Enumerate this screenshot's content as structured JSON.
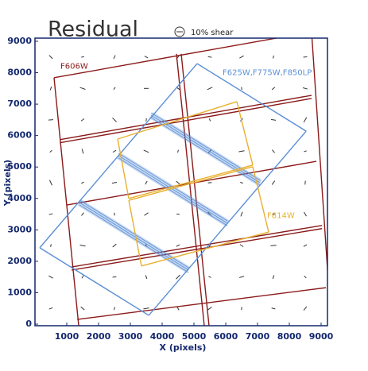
{
  "chart_data": {
    "type": "whisker-map",
    "title": "Residual",
    "legend_label": "10% shear",
    "x_label": "X (pixels)",
    "y_label": "Y (pixels)",
    "xlim": [
      0,
      9200
    ],
    "ylim": [
      -50,
      9100
    ],
    "xticks": [
      1000,
      2000,
      3000,
      4000,
      5000,
      6000,
      7000,
      8000,
      9000
    ],
    "yticks": [
      0,
      1000,
      2000,
      3000,
      4000,
      5000,
      6000,
      7000,
      8000,
      9000
    ],
    "key_shear": 10,
    "whisker_color": "#333333",
    "whiskers": {
      "x": [
        500,
        1500,
        2500,
        3500,
        4500,
        5500,
        6500,
        7500,
        8500
      ],
      "y": [
        500,
        1500,
        2500,
        3500,
        4500,
        5500,
        6500,
        7500,
        8500
      ],
      "angle": [
        [
          20,
          -40,
          75,
          10,
          -60,
          35,
          85,
          -15,
          50
        ],
        [
          -30,
          60,
          5,
          -70,
          45,
          -20,
          15,
          70,
          -45
        ],
        [
          80,
          -10,
          40,
          -55,
          25,
          65,
          -35,
          5,
          30
        ],
        [
          15,
          50,
          -80,
          35,
          -5,
          -45,
          70,
          25,
          -60
        ],
        [
          -65,
          25,
          10,
          60,
          -40,
          5,
          -20,
          55,
          85
        ],
        [
          40,
          -75,
          30,
          -25,
          75,
          50,
          10,
          -50,
          20
        ],
        [
          5,
          35,
          -45,
          80,
          15,
          -65,
          45,
          -10,
          60
        ],
        [
          70,
          -20,
          55,
          0,
          -35,
          25,
          -80,
          40,
          -15
        ],
        [
          -45,
          10,
          65,
          -30,
          50,
          -10,
          30,
          75,
          5
        ]
      ],
      "shear": [
        [
          4,
          5,
          3,
          6,
          4,
          5,
          3,
          4,
          5
        ],
        [
          5,
          3,
          4,
          4,
          6,
          3,
          5,
          4,
          3
        ],
        [
          3,
          6,
          5,
          3,
          4,
          5,
          4,
          6,
          4
        ],
        [
          4,
          4,
          3,
          5,
          3,
          6,
          5,
          3,
          5
        ],
        [
          6,
          3,
          5,
          4,
          5,
          4,
          3,
          5,
          4
        ],
        [
          3,
          5,
          4,
          6,
          3,
          5,
          6,
          4,
          3
        ],
        [
          5,
          4,
          6,
          3,
          5,
          3,
          4,
          5,
          6
        ],
        [
          4,
          6,
          3,
          5,
          4,
          6,
          3,
          4,
          5
        ],
        [
          5,
          3,
          4,
          4,
          6,
          4,
          5,
          3,
          4
        ]
      ]
    },
    "footprints": [
      {
        "name": "F606W",
        "color": "#8b1a1a",
        "label_at": [
          800,
          8200
        ],
        "segments": [
          [
            600,
            7840,
            8700,
            9300
          ],
          [
            780,
            5870,
            8700,
            7280
          ],
          [
            780,
            5770,
            8700,
            7180
          ],
          [
            1000,
            3790,
            8850,
            5180
          ],
          [
            1150,
            1820,
            9030,
            3140
          ],
          [
            1150,
            1720,
            9030,
            3040
          ],
          [
            1330,
            150,
            9150,
            1160
          ],
          [
            600,
            7840,
            1400,
            -300
          ],
          [
            8700,
            9300,
            9250,
            1000
          ],
          [
            4450,
            8600,
            5350,
            -300
          ],
          [
            4600,
            8600,
            5500,
            -300
          ]
        ],
        "bands": []
      },
      {
        "name": "F625W,F775W,F850LP",
        "color": "#5b8fd6",
        "label_at": [
          5900,
          8000
        ],
        "segments": [
          [
            5100,
            8290,
            8530,
            6140
          ],
          [
            8530,
            6140,
            3580,
            280
          ],
          [
            3580,
            280,
            150,
            2430
          ],
          [
            150,
            2430,
            5100,
            8290
          ]
        ],
        "bands": [
          [
            3650,
            6650,
            7080,
            4500
          ],
          [
            2630,
            5360,
            6050,
            3210
          ],
          [
            1400,
            3870,
            4830,
            1720
          ]
        ]
      },
      {
        "name": "F814W",
        "color": "#e8b030",
        "label_at": [
          7300,
          3450
        ],
        "segments": [
          [
            2600,
            5890,
            6350,
            7080
          ],
          [
            6350,
            7080,
            6850,
            5060
          ],
          [
            6850,
            5060,
            2950,
            4000
          ],
          [
            2950,
            4000,
            2600,
            5890
          ],
          [
            2950,
            3940,
            6850,
            5010
          ],
          [
            6850,
            5010,
            7350,
            2930
          ],
          [
            7350,
            2930,
            3350,
            1850
          ],
          [
            3350,
            1850,
            2950,
            3940
          ]
        ],
        "bands": []
      }
    ]
  }
}
